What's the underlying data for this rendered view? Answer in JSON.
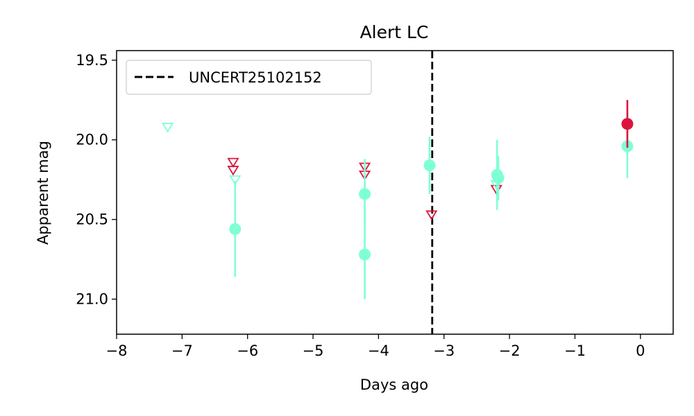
{
  "chart_data": {
    "type": "scatter",
    "title": "Alert LC",
    "xlabel": "Days ago",
    "ylabel": "Apparent mag",
    "xlim": [
      -8,
      0.5
    ],
    "ylim": [
      21.22,
      19.44
    ],
    "y_inverted": true,
    "xticks": [
      -8,
      -7,
      -6,
      -5,
      -4,
      -3,
      -2,
      -1,
      0
    ],
    "xtick_labels": [
      "−8",
      "−7",
      "−6",
      "−5",
      "−4",
      "−3",
      "−2",
      "−1",
      "0"
    ],
    "yticks": [
      19.5,
      20.0,
      20.5,
      21.0
    ],
    "ytick_labels": [
      "19.5",
      "20.0",
      "20.5",
      "21.0"
    ],
    "grid": false,
    "legend": {
      "position": "top-left",
      "entries": [
        "UNCERT25102152"
      ]
    },
    "vline": {
      "x": -3.18,
      "style": "dashed",
      "color": "#000000",
      "label": "UNCERT25102152"
    },
    "colors": {
      "g": "#7fffd4",
      "r": "#dc143c"
    },
    "detections": [
      {
        "band": "g",
        "x": -6.19,
        "y": 20.56,
        "err": 0.3
      },
      {
        "band": "g",
        "x": -4.21,
        "y": 20.34,
        "err": 0.22
      },
      {
        "band": "g",
        "x": -4.21,
        "y": 20.72,
        "err": 0.28
      },
      {
        "band": "g",
        "x": -3.22,
        "y": 20.16,
        "err": 0.18
      },
      {
        "band": "g",
        "x": -2.19,
        "y": 20.22,
        "err": 0.22
      },
      {
        "band": "g",
        "x": -2.17,
        "y": 20.24,
        "err": 0.14
      },
      {
        "band": "g",
        "x": -0.2,
        "y": 20.04,
        "err": 0.2
      },
      {
        "band": "r",
        "x": -0.2,
        "y": 19.9,
        "err": 0.15
      }
    ],
    "upper_limits": [
      {
        "band": "g",
        "x": -7.22,
        "y": 19.92
      },
      {
        "band": "r",
        "x": -6.22,
        "y": 20.14
      },
      {
        "band": "r",
        "x": -6.22,
        "y": 20.19
      },
      {
        "band": "g",
        "x": -6.19,
        "y": 20.25
      },
      {
        "band": "r",
        "x": -4.21,
        "y": 20.17
      },
      {
        "band": "r",
        "x": -4.21,
        "y": 20.22
      },
      {
        "band": "r",
        "x": -3.19,
        "y": 20.47
      },
      {
        "band": "r",
        "x": -2.2,
        "y": 20.31
      },
      {
        "band": "g",
        "x": -2.2,
        "y": 20.28
      }
    ]
  }
}
